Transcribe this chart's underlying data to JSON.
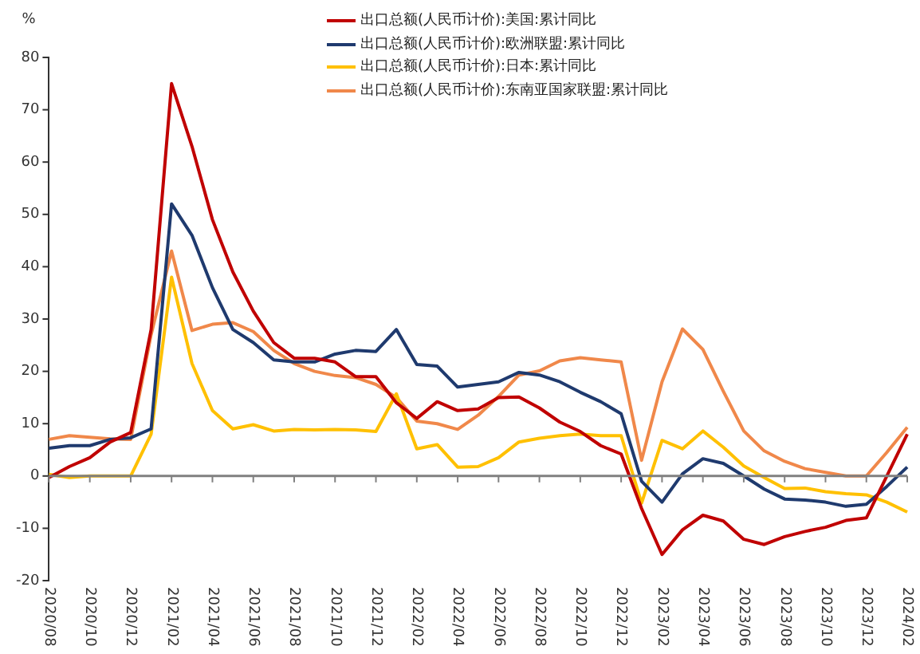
{
  "chart_data": {
    "type": "line",
    "ylabel": "%",
    "legend": "top",
    "marker": "none",
    "line_style": "solid",
    "categories": [
      "2020/08",
      null,
      "2020/10",
      null,
      "2020/12",
      null,
      "2021/02",
      null,
      "2021/04",
      null,
      "2021/06",
      null,
      "2021/08",
      null,
      "2021/10",
      null,
      "2021/12",
      null,
      "2022/02",
      null,
      "2022/04",
      null,
      "2022/06",
      null,
      "2022/08",
      null,
      "2022/10",
      null,
      "2022/12",
      null,
      "2023/02",
      null,
      "2023/04",
      null,
      "2023/06",
      null,
      "2023/08",
      null,
      "2023/10",
      null,
      "2023/12",
      null,
      "2024/02"
    ],
    "ylim": [
      -20,
      80
    ],
    "yticks": [
      -20,
      -10,
      0,
      10,
      20,
      30,
      40,
      50,
      60,
      70,
      80
    ],
    "series": [
      {
        "name": "出口总额(人民币计价):美国:累计同比",
        "color": "#c00000",
        "values": [
          -0.3,
          1.8,
          3.5,
          6.5,
          8.3,
          28,
          75,
          63,
          49,
          39,
          31.5,
          25.5,
          22.5,
          22.5,
          21.8,
          19,
          19,
          14,
          11,
          14.2,
          12.5,
          12.8,
          15,
          15.1,
          13,
          10.3,
          8.5,
          5.8,
          4.2,
          -6.2,
          -15,
          -10.3,
          -7.5,
          -8.6,
          -12.1,
          -13.1,
          -11.6,
          -10.6,
          -9.8,
          -8.5,
          -8,
          0,
          8
        ]
      },
      {
        "name": "出口总额(人民币计价):欧洲联盟:累计同比",
        "color": "#1f3a6e",
        "values": [
          5.3,
          5.8,
          5.8,
          7,
          7.3,
          9,
          52,
          46,
          36,
          28,
          25.5,
          22.2,
          21.8,
          21.8,
          23.3,
          24,
          23.8,
          28,
          21.3,
          21,
          17,
          17.5,
          18,
          19.8,
          19.3,
          18,
          16,
          14.2,
          11.9,
          -1,
          -5,
          0.4,
          3.3,
          2.4,
          0,
          -2.5,
          -4.4,
          -4.6,
          -5,
          -5.8,
          -5.4,
          -2,
          1.7
        ]
      },
      {
        "name": "出口总额(人民币计价):日本:累计同比",
        "color": "#ffc000",
        "values": [
          0.3,
          -0.3,
          0,
          0,
          0,
          8,
          38,
          21.5,
          12.5,
          9,
          9.8,
          8.6,
          8.9,
          8.8,
          8.9,
          8.8,
          8.5,
          15.7,
          5.2,
          6,
          1.7,
          1.8,
          3.5,
          6.5,
          7.2,
          7.7,
          8,
          7.7,
          7.7,
          -5.2,
          6.8,
          5.2,
          8.6,
          5.5,
          1.9,
          -0.3,
          -2.4,
          -2.3,
          -3,
          -3.4,
          -3.6,
          -5,
          -6.9
        ]
      },
      {
        "name": "出口总额(人民币计价):东南亚国家联盟:累计同比",
        "color": "#f0884a",
        "values": [
          7,
          7.7,
          7.4,
          7.1,
          7,
          27,
          43,
          27.8,
          29,
          29.3,
          27.6,
          24,
          21.5,
          20,
          19.2,
          18.8,
          17.5,
          15,
          10.5,
          10,
          8.9,
          11.6,
          15.2,
          19.3,
          20.1,
          22,
          22.6,
          22.2,
          21.8,
          3,
          18,
          28.1,
          24.2,
          16.2,
          8.6,
          4.8,
          2.8,
          1.4,
          0.7,
          0,
          0,
          4.5,
          9.3
        ]
      }
    ]
  }
}
